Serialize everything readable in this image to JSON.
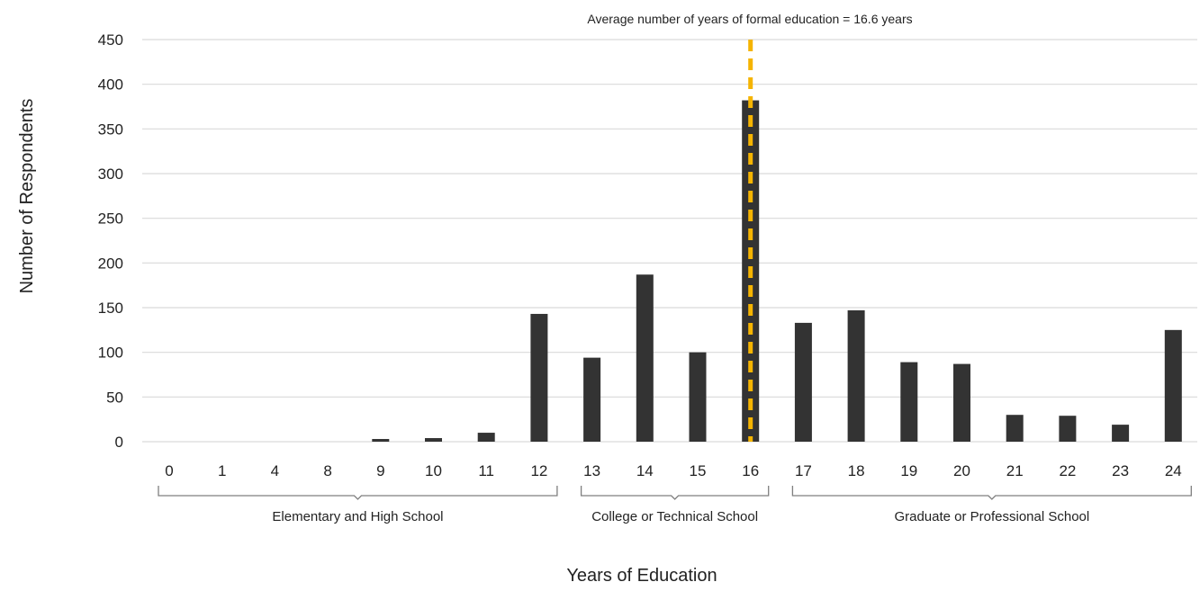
{
  "chart_data": {
    "type": "bar",
    "title": "",
    "annotation": "Average number of years of formal education = 16.6 years",
    "xlabel": "Years of Education",
    "ylabel": "Number of Respondents",
    "categories": [
      "0",
      "1",
      "4",
      "8",
      "9",
      "10",
      "11",
      "12",
      "13",
      "14",
      "15",
      "16",
      "17",
      "18",
      "19",
      "20",
      "21",
      "22",
      "23",
      "24"
    ],
    "values": [
      0,
      0,
      0,
      0,
      3,
      4,
      10,
      143,
      94,
      187,
      100,
      382,
      133,
      147,
      89,
      87,
      30,
      29,
      19,
      125
    ],
    "ylim": [
      0,
      450
    ],
    "yticks": [
      0,
      50,
      100,
      150,
      200,
      250,
      300,
      350,
      400,
      450
    ],
    "grid": true,
    "average_marker": {
      "value": 16.6,
      "category": "16",
      "style": "dashed",
      "color": "#f5b400"
    },
    "groups": [
      {
        "label": "Elementary and High School",
        "start": "0",
        "end": "12"
      },
      {
        "label": "College or Technical School",
        "start": "13",
        "end": "16"
      },
      {
        "label": "Graduate or Professional School",
        "start": "17",
        "end": "24"
      }
    ],
    "colors": {
      "bar": "#333333",
      "grid": "#d9d9d9",
      "average_line": "#f5b400"
    }
  }
}
